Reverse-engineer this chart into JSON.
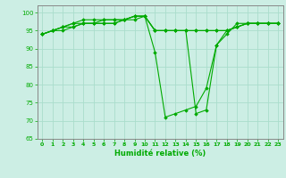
{
  "title": "",
  "xlabel": "Humidité relative (%)",
  "ylabel": "",
  "background_color": "#cceee4",
  "grid_color": "#aaddcc",
  "line_color": "#00aa00",
  "xlim": [
    -0.5,
    23.5
  ],
  "ylim": [
    65,
    102
  ],
  "xticks": [
    0,
    1,
    2,
    3,
    4,
    5,
    6,
    7,
    8,
    9,
    10,
    11,
    12,
    13,
    14,
    15,
    16,
    17,
    18,
    19,
    20,
    21,
    22,
    23
  ],
  "yticks": [
    65,
    70,
    75,
    80,
    85,
    90,
    95,
    100
  ],
  "series": [
    [
      94,
      95,
      95,
      96,
      97,
      97,
      97,
      97,
      98,
      98,
      99,
      89,
      71,
      72,
      73,
      74,
      79,
      91,
      94,
      97,
      97,
      97,
      97,
      97
    ],
    [
      94,
      95,
      96,
      96,
      97,
      97,
      97,
      97,
      98,
      99,
      99,
      95,
      95,
      95,
      95,
      95,
      95,
      95,
      95,
      96,
      97,
      97,
      97,
      97
    ],
    [
      94,
      95,
      96,
      97,
      97,
      97,
      98,
      98,
      98,
      99,
      99,
      95,
      95,
      95,
      95,
      95,
      95,
      95,
      95,
      96,
      97,
      97,
      97,
      97
    ],
    [
      94,
      95,
      96,
      97,
      98,
      98,
      98,
      98,
      98,
      99,
      99,
      95,
      95,
      95,
      95,
      72,
      73,
      91,
      95,
      96,
      97,
      97,
      97,
      97
    ]
  ]
}
